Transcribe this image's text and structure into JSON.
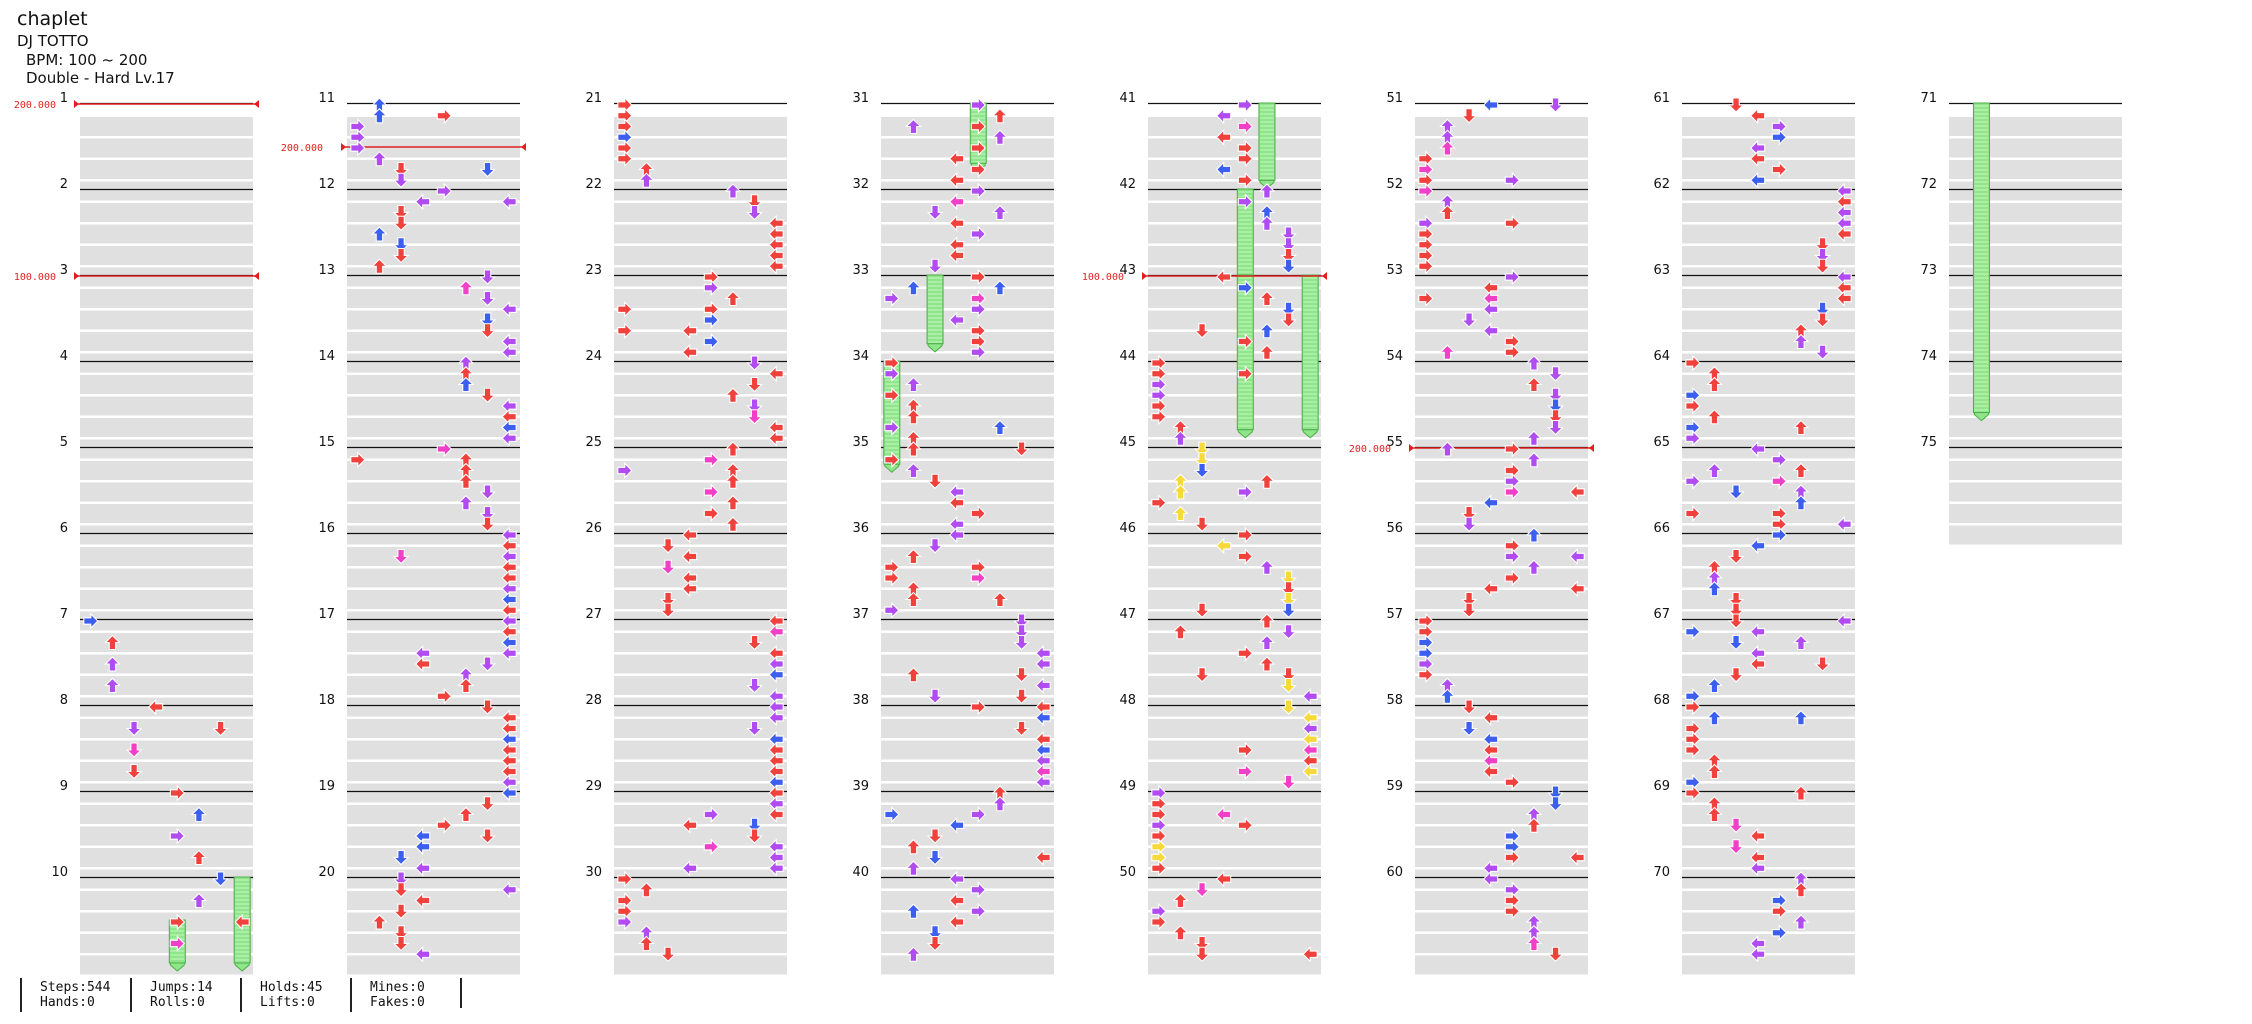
{
  "song": {
    "title": "chaplet",
    "artist": "DJ TOTTO",
    "bpm_label": "BPM: 100 ~ 200",
    "difficulty_label": "Double - Hard  Lv.17"
  },
  "colors": {
    "red_arrow": "#f0413c",
    "blue_arrow": "#3c5ff0",
    "purple_arrow": "#b04cf2",
    "magenta_arrow": "#f040c8",
    "yellow_arrow": "#f7d93a",
    "hold_body": "#8fe68a",
    "bpm_line": "#e02020",
    "stripe": "#e0e0e0"
  },
  "measures": [
    "1",
    "2",
    "3",
    "4",
    "5",
    "6",
    "7",
    "8",
    "9",
    "10",
    "11",
    "12",
    "13",
    "14",
    "15",
    "16",
    "17",
    "18",
    "19",
    "20",
    "21",
    "22",
    "23",
    "24",
    "25",
    "26",
    "27",
    "28",
    "29",
    "30",
    "31",
    "32",
    "33",
    "34",
    "35",
    "36",
    "37",
    "38",
    "39",
    "40",
    "41",
    "42",
    "43",
    "44",
    "45",
    "46",
    "47",
    "48",
    "49",
    "50",
    "51",
    "52",
    "53",
    "54",
    "55",
    "56",
    "57",
    "58",
    "59",
    "60",
    "61",
    "62",
    "63",
    "64",
    "65",
    "66",
    "67",
    "68",
    "69",
    "70",
    "71",
    "72",
    "73",
    "74",
    "75"
  ],
  "bpm_changes": [
    {
      "measure": 1,
      "label": "200.000"
    },
    {
      "measure": 3,
      "label": "100.000"
    },
    {
      "measure": 11.5,
      "label": "200.000"
    },
    {
      "measure": 43,
      "label": "100.000"
    },
    {
      "measure": 55,
      "label": "200.000"
    }
  ],
  "stats": {
    "steps": "Steps:544",
    "hands": "Hands:0",
    "jumps": "Jumps:14",
    "rolls": "Rolls:0",
    "holds": "Holds:45",
    "lifts": "Lifts:0",
    "mines": "Mines:0",
    "fakes": "Fakes:0"
  }
}
